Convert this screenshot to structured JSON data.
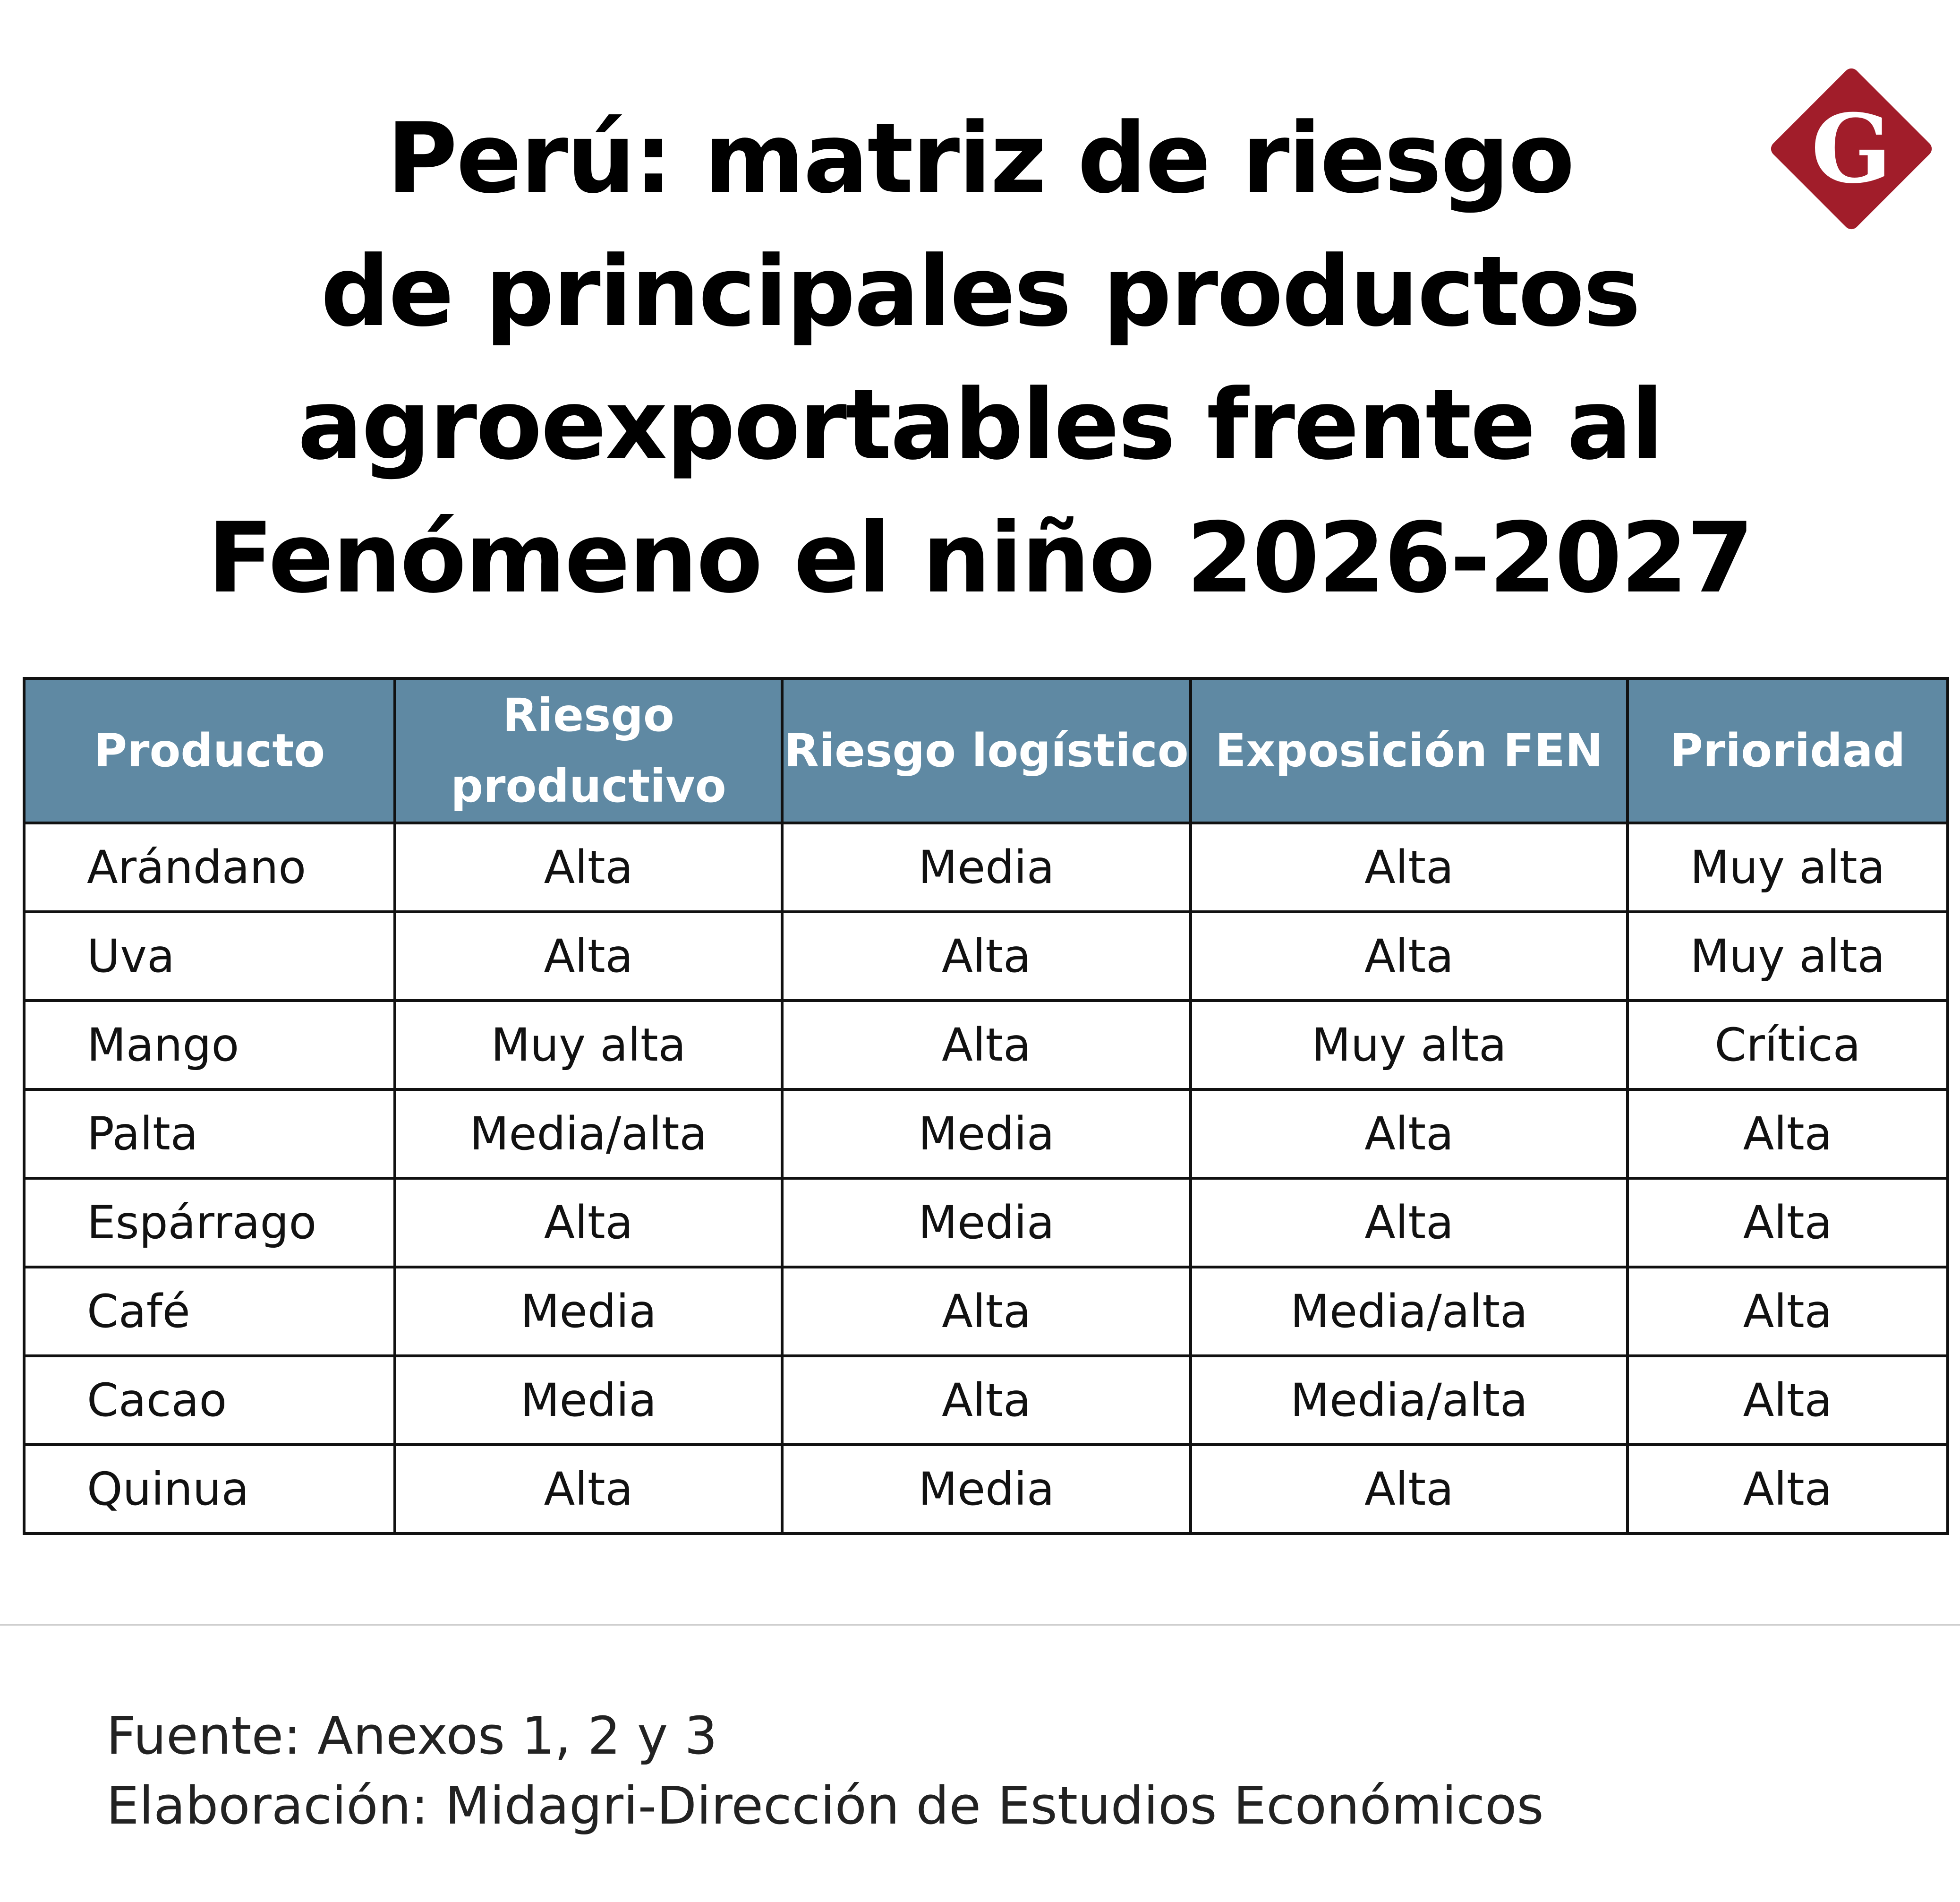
{
  "title_lines": [
    "Perú: matriz de riesgo",
    "de principales productos",
    "agroexportables frente al",
    "Fenómeno el niño 2026-2027"
  ],
  "logo": {
    "letter": "G",
    "color": "#a11d2a"
  },
  "colors": {
    "header_bg": "#5f89a3",
    "header_text": "#ffffff",
    "border": "#111111"
  },
  "chart_data": {
    "type": "table",
    "title": "Perú: matriz de riesgo de principales productos agroexportables frente al Fenómeno el niño 2026-2027",
    "columns": [
      "Producto",
      "Riesgo productivo",
      "Riesgo logístico",
      "Exposición FEN",
      "Prioridad"
    ],
    "rows": [
      [
        "Arándano",
        "Alta",
        "Media",
        "Alta",
        "Muy alta"
      ],
      [
        "Uva",
        "Alta",
        "Alta",
        "Alta",
        "Muy alta"
      ],
      [
        "Mango",
        "Muy alta",
        "Alta",
        "Muy alta",
        "Crítica"
      ],
      [
        "Palta",
        "Media/alta",
        "Media",
        "Alta",
        "Alta"
      ],
      [
        "Espárrago",
        "Alta",
        "Media",
        "Alta",
        "Alta"
      ],
      [
        "Café",
        "Media",
        "Alta",
        "Media/alta",
        "Alta"
      ],
      [
        "Cacao",
        "Media",
        "Alta",
        "Media/alta",
        "Alta"
      ],
      [
        "Quinua",
        "Alta",
        "Media",
        "Alta",
        "Alta"
      ]
    ]
  },
  "source": {
    "line1": "Fuente: Anexos 1, 2 y 3",
    "line2": "Elaboración: Midagri-Dirección de Estudios Económicos"
  }
}
